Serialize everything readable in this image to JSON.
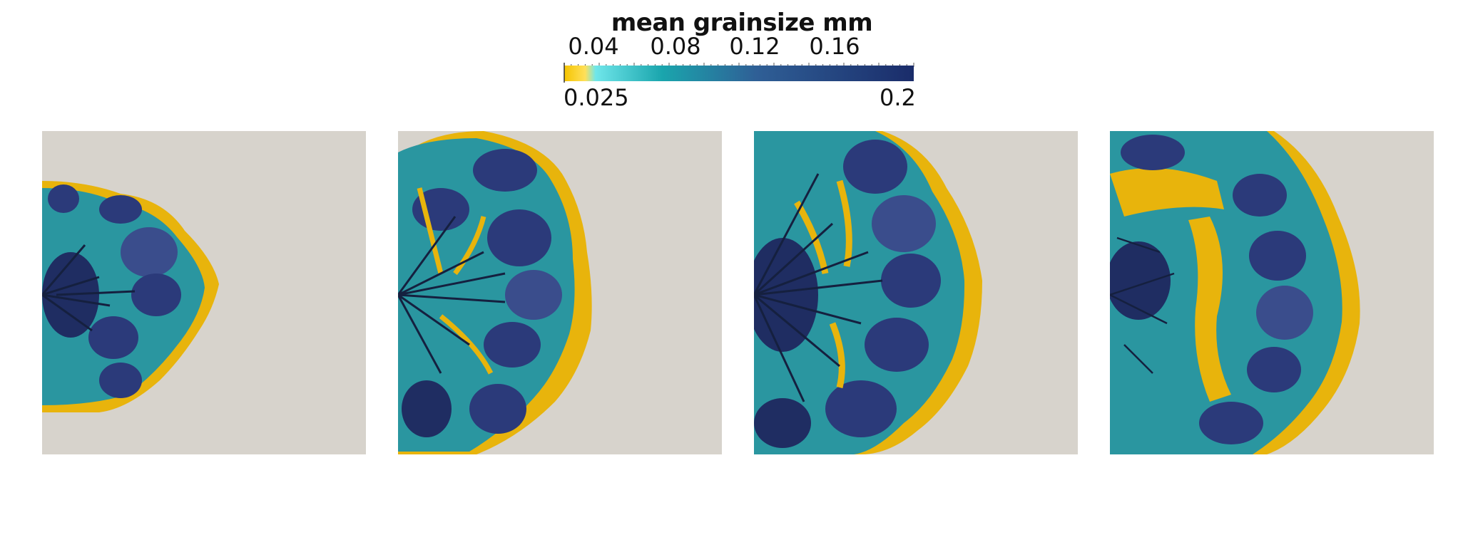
{
  "colorbar": {
    "title": "mean grainsize mm",
    "min_label": "0.025",
    "max_label": "0.2",
    "min": 0.025,
    "max": 0.2,
    "ticks": [
      {
        "label": "0.04",
        "value": 0.04
      },
      {
        "label": "0.08",
        "value": 0.08
      },
      {
        "label": "0.12",
        "value": 0.12
      },
      {
        "label": "0.16",
        "value": 0.16
      }
    ],
    "colors": {
      "low": "#f5c400",
      "low_mid": "#ffe05a",
      "cyan": "#6fe6ea",
      "teal": "#1a9fa8",
      "mid": "#2c5c94",
      "high": "#1a2c6a"
    }
  },
  "panels": [
    {
      "extent": 0.45
    },
    {
      "extent": 0.62
    },
    {
      "extent": 0.72
    },
    {
      "extent": 0.8
    }
  ],
  "colors": {
    "background": "#d7d3cc",
    "sand": "#e8b40c",
    "teal": "#2a96a0",
    "navy": "#2b3a7a",
    "channel": "#15203f"
  }
}
